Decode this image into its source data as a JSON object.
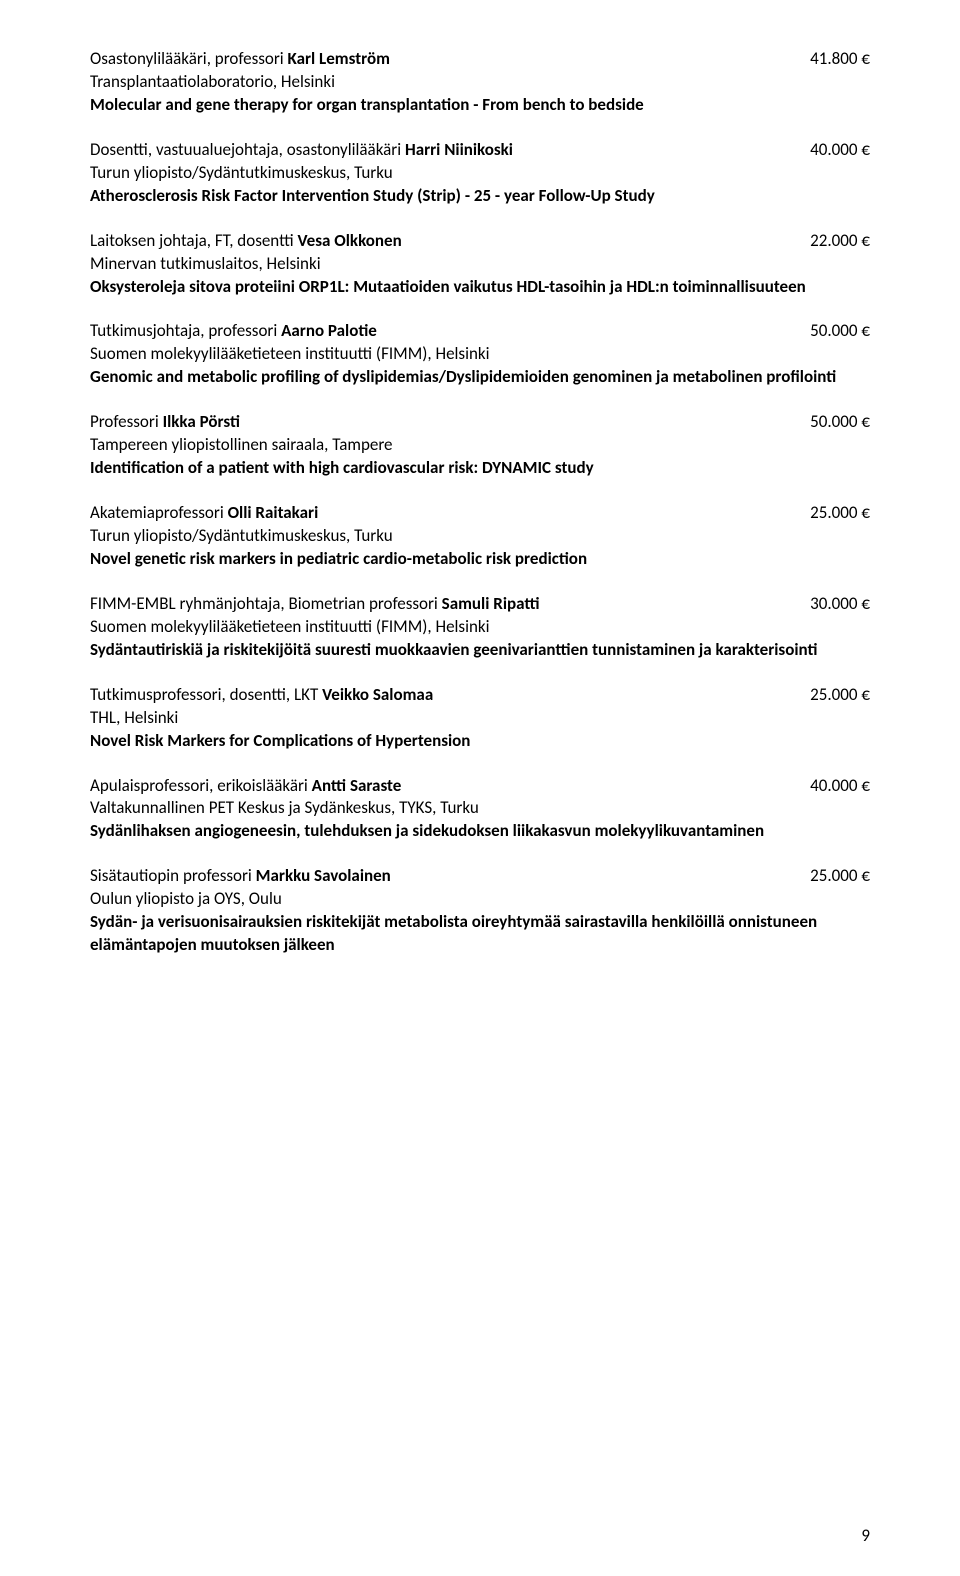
{
  "entries": [
    {
      "headline_pre": "Osastonylilääkäri, professori ",
      "headline_bold": "Karl Lemström",
      "amount": "41.800 €",
      "affiliation": "Transplantaatiolaboratorio, Helsinki",
      "project_bold": "Molecular and gene therapy for organ transplantation - From bench to bedside",
      "project_extra": null
    },
    {
      "headline_pre": "Dosentti, vastuualuejohtaja, osastonylilääkäri ",
      "headline_bold": "Harri Niinikoski",
      "amount": "40.000 €",
      "affiliation": "Turun yliopisto/Sydäntutkimuskeskus, Turku",
      "project_bold": "Atherosclerosis Risk Factor Intervention Study (Strip) - 25 - year Follow-Up Study",
      "project_extra": null
    },
    {
      "headline_pre": "Laitoksen johtaja, FT, dosentti ",
      "headline_bold": "Vesa Olkkonen",
      "amount": "22.000 €",
      "affiliation": "Minervan tutkimuslaitos, Helsinki",
      "project_bold": "Oksysteroleja sitova proteiini ORP1L: Mutaatioiden vaikutus HDL-tasoihin ja HDL:n toiminnallisuuteen",
      "project_extra": null
    },
    {
      "headline_pre": "Tutkimusjohtaja, professori ",
      "headline_bold": "Aarno Palotie",
      "amount": "50.000 €",
      "affiliation": "Suomen molekyylilääketieteen instituutti (FIMM), Helsinki",
      "project_bold": "Genomic and metabolic profiling of dyslipidemias/Dyslipidemioiden genominen ja metabolinen profilointi",
      "project_extra": null
    },
    {
      "headline_pre": "Professori ",
      "headline_bold": "Ilkka Pörsti",
      "amount": "50.000 €",
      "affiliation": "Tampereen yliopistollinen sairaala, Tampere",
      "project_bold": "Identification of a patient with high cardiovascular risk: DYNAMIC study",
      "project_extra": null
    },
    {
      "headline_pre": "Akatemiaprofessori ",
      "headline_bold": "Olli Raitakari",
      "amount": "25.000 €",
      "affiliation": "Turun yliopisto/Sydäntutkimuskeskus, Turku",
      "project_bold": "Novel genetic risk markers in pediatric cardio-metabolic risk prediction",
      "project_extra": null
    },
    {
      "headline_pre": "FIMM-EMBL ryhmänjohtaja, Biometrian professori ",
      "headline_bold": "Samuli Ripatti",
      "amount": "30.000 €",
      "affiliation": "Suomen molekyylilääketieteen instituutti (FIMM), Helsinki",
      "project_bold": "Sydäntautiriskiä ja riskitekijöitä suuresti muokkaavien geenivarianttien tunnistaminen ja karakterisointi",
      "project_extra": null
    },
    {
      "headline_pre": "Tutkimusprofessori, dosentti, LKT ",
      "headline_bold": "Veikko Salomaa",
      "amount": "25.000 €",
      "affiliation": "THL, Helsinki",
      "project_bold": "Novel Risk Markers for Complications of Hypertension",
      "project_extra": null
    },
    {
      "headline_pre": "Apulaisprofessori, erikoislääkäri ",
      "headline_bold": "Antti Saraste",
      "amount": "40.000 €",
      "affiliation": "Valtakunnallinen PET Keskus ja Sydänkeskus, TYKS, Turku",
      "project_bold": "Sydänlihaksen angiogeneesin, tulehduksen ja sidekudoksen liikakasvun molekyylikuvantaminen",
      "project_extra": null
    },
    {
      "headline_pre": "Sisätautiopin professori ",
      "headline_bold": "Markku Savolainen",
      "amount": "25.000 €",
      "affiliation": "Oulun yliopisto ja OYS, Oulu",
      "project_bold": "Sydän- ja verisuonisairauksien riskitekijät metabolista oireyhtymää sairastavilla henkilöillä onnistuneen elämäntapojen muutoksen jälkeen",
      "project_extra": null
    }
  ],
  "page_number": "9"
}
